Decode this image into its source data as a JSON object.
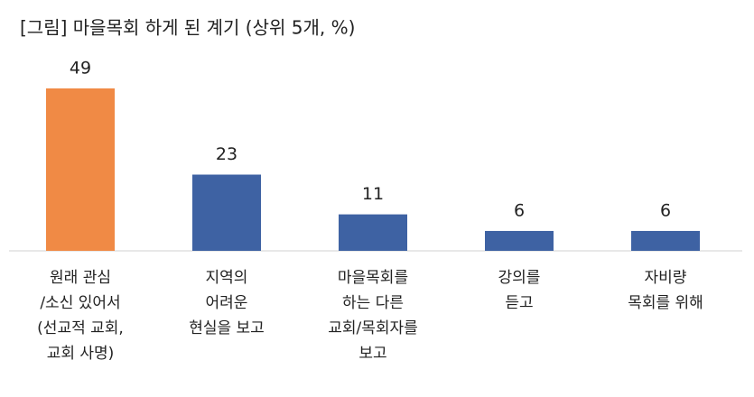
{
  "chart_data": {
    "type": "bar",
    "title": "[그림] 마을목회 하게 된 계기 (상위 5개, %)",
    "categories": [
      [
        "원래 관심",
        "/소신 있어서",
        "(선교적 교회,",
        "교회 사명)"
      ],
      [
        "지역의",
        "어려운",
        "현실을 보고"
      ],
      [
        "마을목회를",
        "하는 다른",
        "교회/목회자를",
        "보고"
      ],
      [
        "강의를",
        "듣고"
      ],
      [
        "자비량",
        "목회를 위해"
      ]
    ],
    "values": [
      49,
      23,
      11,
      6,
      6
    ],
    "colors": [
      "#f08a45",
      "#3e62a3",
      "#3e62a3",
      "#3e62a3",
      "#3e62a3"
    ]
  }
}
